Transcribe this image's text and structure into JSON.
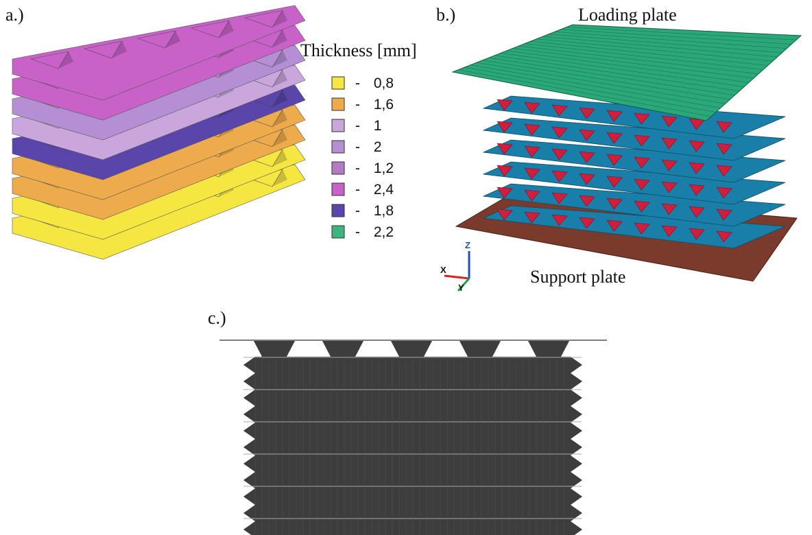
{
  "panels": {
    "a": {
      "label": "a.)",
      "legend": {
        "title": "Thickness [mm]",
        "entries": [
          {
            "label": "- 0,8",
            "color": "#f5e642"
          },
          {
            "label": "- 1,6",
            "color": "#eeab4c"
          },
          {
            "label": "- 1",
            "color": "#c9a6dc"
          },
          {
            "label": "- 2",
            "color": "#b58fd3"
          },
          {
            "label": "- 1,2",
            "color": "#b17cc4"
          },
          {
            "label": "- 2,4",
            "color": "#c962c8"
          },
          {
            "label": "- 1,8",
            "color": "#5a45aa"
          },
          {
            "label": "- 2,2",
            "color": "#40b47e"
          }
        ]
      }
    },
    "b": {
      "label": "b.)",
      "top_plate": "Loading plate",
      "bottom_plate": "Support plate",
      "axes": {
        "x": "X",
        "y": "Y",
        "z": "Z"
      }
    },
    "c": {
      "label": "c.)"
    }
  }
}
